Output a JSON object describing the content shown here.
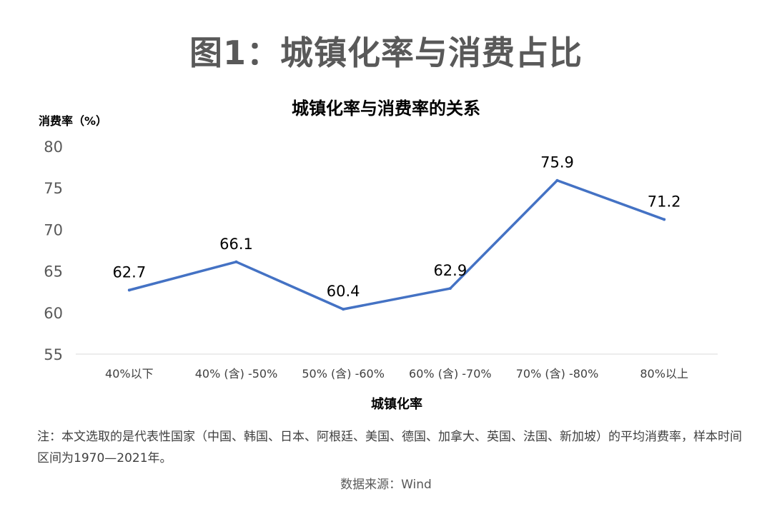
{
  "figure_title": "图1：城镇化率与消费占比",
  "note": "注：本文选取的是代表性国家（中国、韩国、日本、阿根廷、美国、德国、加拿大、英国、法国、新加坡）的平均消费率，样本时间区间为1970—2021年。",
  "source": "数据来源：Wind",
  "chart_data": {
    "type": "line",
    "title": "城镇化率与消费率的关系",
    "xlabel": "城镇化率",
    "ylabel": "消费率（%）",
    "categories": [
      "40%以下",
      "40% (含) -50%",
      "50% (含) -60%",
      "60% (含) -70%",
      "70% (含) -80%",
      "80%以上"
    ],
    "values": [
      62.7,
      66.1,
      60.4,
      62.9,
      75.9,
      71.2
    ],
    "data_labels": [
      "62.7",
      "66.1",
      "60.4",
      "62.9",
      "75.9",
      "71.2"
    ],
    "ylim": [
      55,
      80
    ],
    "yticks": [
      "55",
      "60",
      "65",
      "70",
      "75",
      "80"
    ],
    "grid": false,
    "line_color": "#4472C4"
  }
}
